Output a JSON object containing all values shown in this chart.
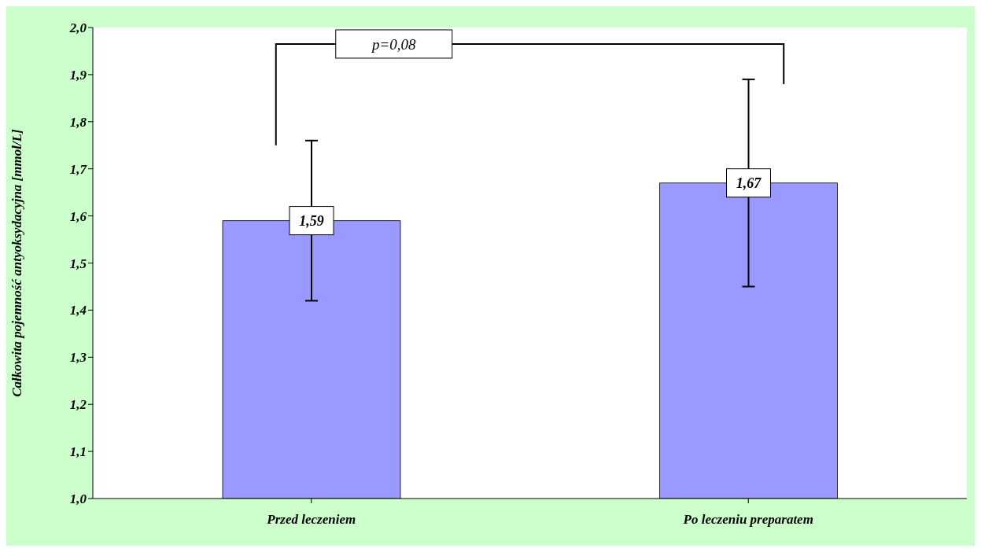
{
  "chart_data": {
    "type": "bar",
    "ylabel": "Całkowita pojemność antyoksydacyjna [mmol/L]",
    "categories": [
      "Przed leczeniem",
      "Po leczeniu preparatem"
    ],
    "values": [
      1.59,
      1.67
    ],
    "color": "#9999ff",
    "errors": [
      0.17,
      0.22
    ],
    "value_labels": [
      "1,59",
      "1,67"
    ],
    "ylim": [
      1.0,
      2.0
    ],
    "yticks": [
      {
        "value": 1.0,
        "label": "1,0"
      },
      {
        "value": 1.1,
        "label": "1,1"
      },
      {
        "value": 1.2,
        "label": "1,2"
      },
      {
        "value": 1.3,
        "label": "1,3"
      },
      {
        "value": 1.4,
        "label": "1,4"
      },
      {
        "value": 1.5,
        "label": "1,5"
      },
      {
        "value": 1.6,
        "label": "1,6"
      },
      {
        "value": 1.7,
        "label": "1,7"
      },
      {
        "value": 1.8,
        "label": "1,8"
      },
      {
        "value": 1.9,
        "label": "1,9"
      },
      {
        "value": 2.0,
        "label": "2,0"
      }
    ],
    "grid": false,
    "annotations": [
      "p=0,08"
    ]
  }
}
